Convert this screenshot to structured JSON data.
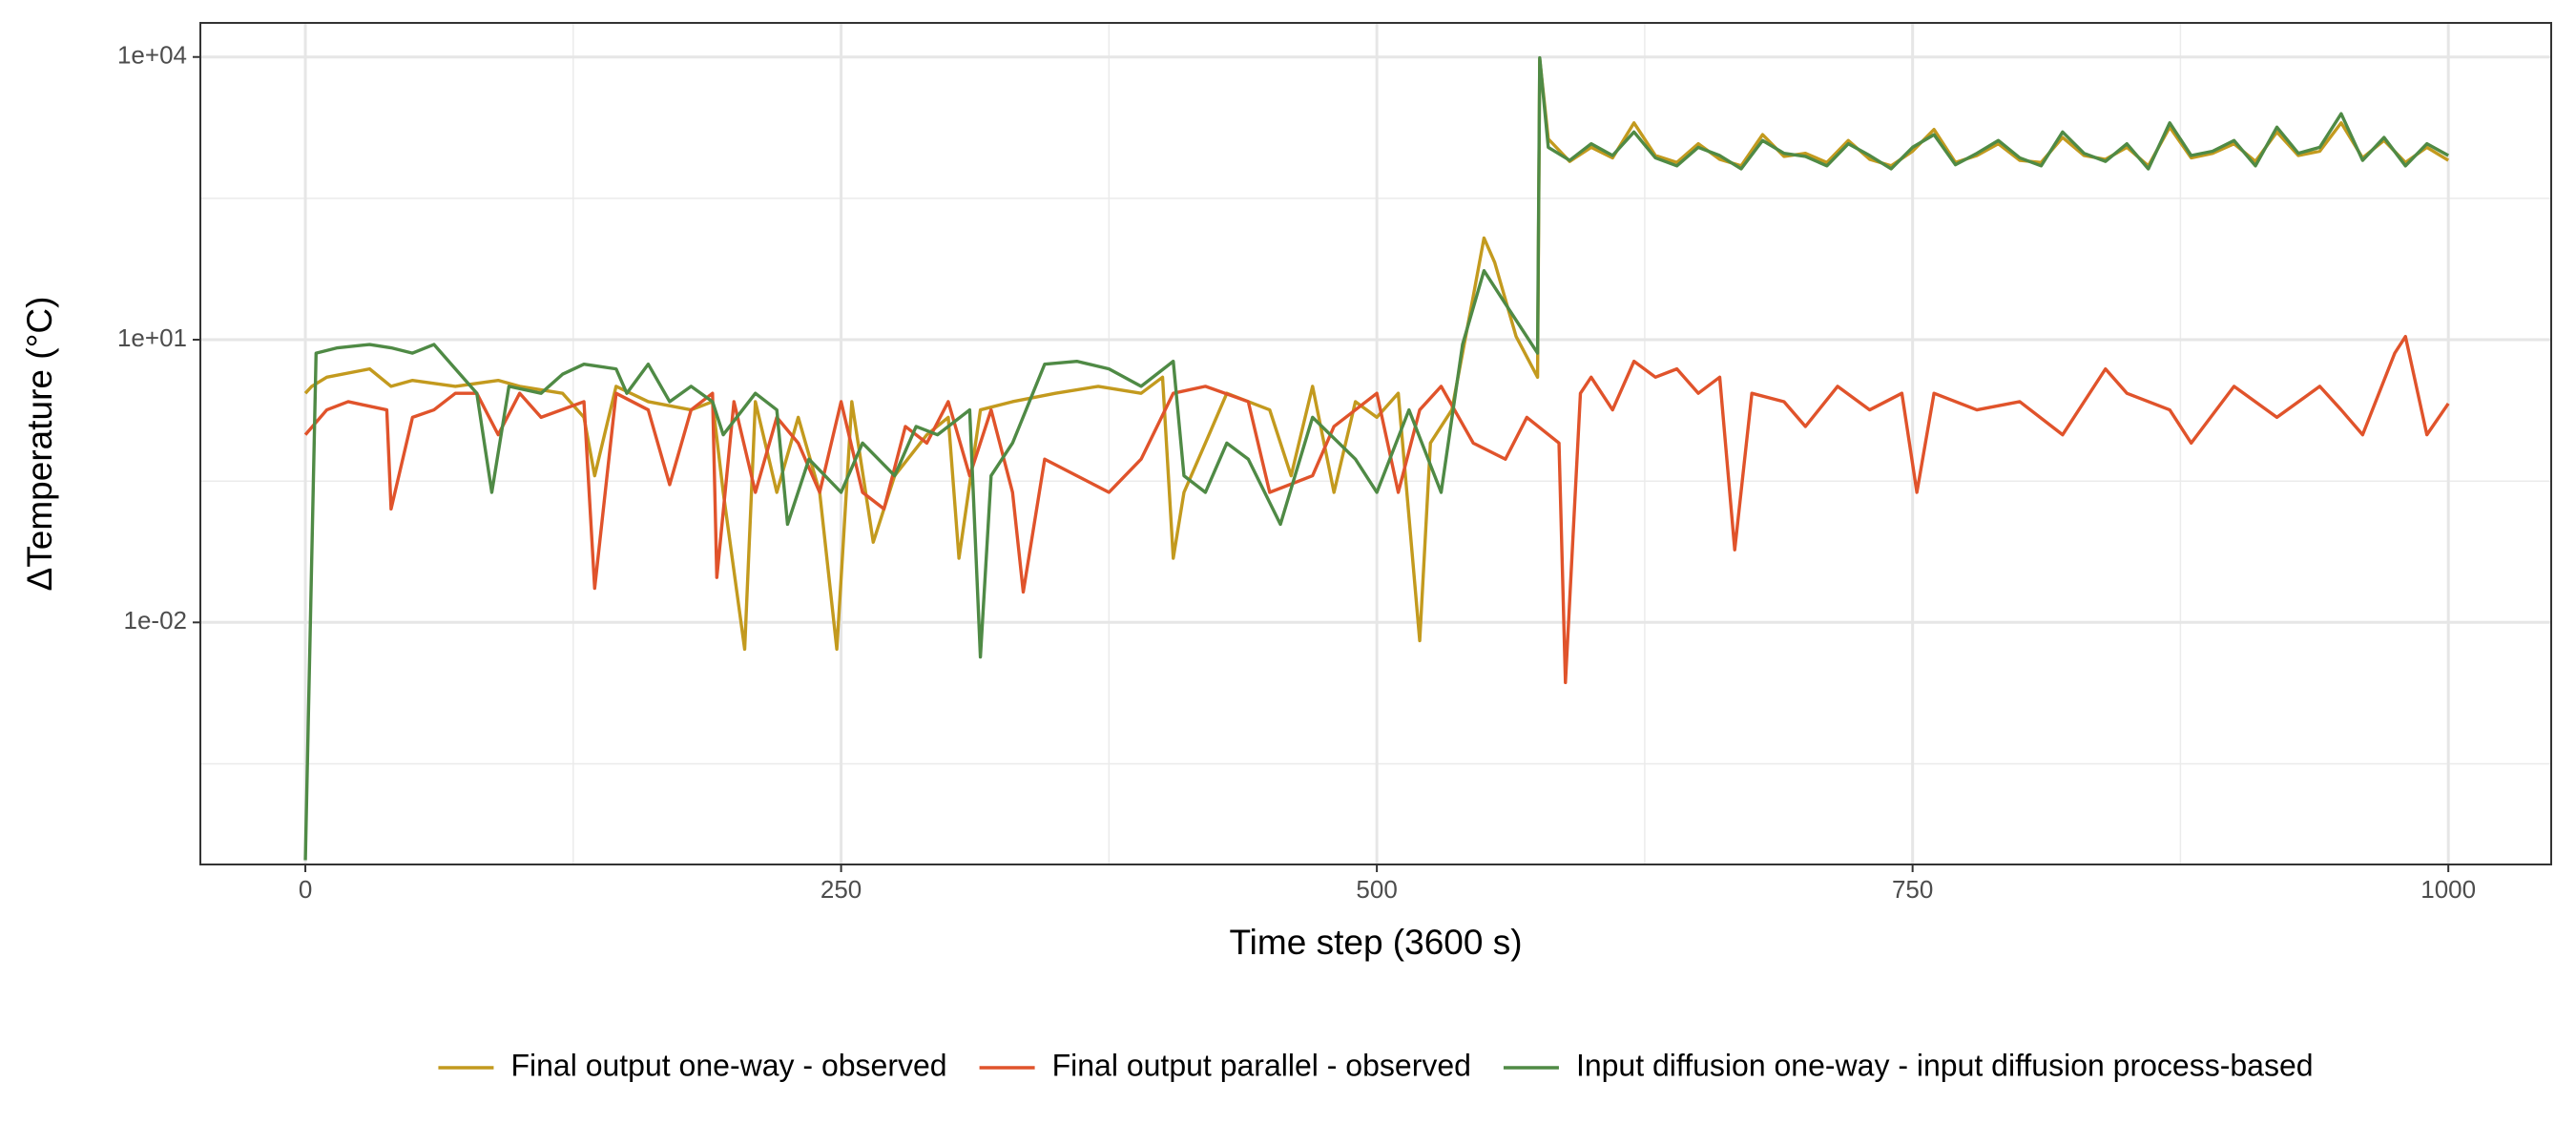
{
  "chart_data": {
    "type": "line",
    "xlabel": "Time step (3600 s)",
    "ylabel": "ΔTemperature (°C)",
    "xlim": [
      -49,
      1048
    ],
    "xticks": [
      0,
      250,
      500,
      750,
      1000
    ],
    "x_minor_gridlines": [
      125,
      375,
      625,
      875
    ],
    "ylim": [
      2.7e-05,
      23000
    ],
    "ylog": true,
    "yticks": [
      {
        "value": 0.01,
        "label": "1e-02"
      },
      {
        "value": 10,
        "label": "1e+01"
      },
      {
        "value": 10000,
        "label": "1e+04"
      }
    ],
    "y_minor_gridlines": [
      0.000316,
      0.316,
      316
    ],
    "grid": true,
    "legend": "bottom",
    "series": [
      {
        "name": "Final output one-way - observed",
        "color": "#c39a1e",
        "x": [
          0,
          3,
          10,
          30,
          40,
          50,
          70,
          90,
          100,
          120,
          130,
          135,
          145,
          160,
          180,
          190,
          195,
          205,
          210,
          220,
          230,
          240,
          248,
          255,
          265,
          275,
          290,
          300,
          305,
          315,
          330,
          350,
          370,
          390,
          400,
          405,
          410,
          420,
          430,
          450,
          460,
          470,
          480,
          490,
          500,
          510,
          520,
          525,
          535,
          545,
          550,
          555,
          565,
          575,
          576,
          580,
          590,
          600,
          610,
          620,
          630,
          640,
          650,
          660,
          670,
          680,
          690,
          700,
          710,
          720,
          730,
          740,
          750,
          760,
          770,
          780,
          790,
          800,
          810,
          820,
          830,
          840,
          850,
          860,
          870,
          880,
          890,
          900,
          910,
          920,
          930,
          940,
          950,
          960,
          970,
          980,
          990,
          1000
        ],
        "values": [
          2.7,
          3.2,
          4,
          4.9,
          3.2,
          3.7,
          3.2,
          3.7,
          3.2,
          2.7,
          1.5,
          0.36,
          3.2,
          2.2,
          1.8,
          2.2,
          0.24,
          0.0052,
          2.2,
          0.24,
          1.5,
          0.24,
          0.0052,
          2.2,
          0.071,
          0.36,
          0.98,
          1.5,
          0.048,
          1.8,
          2.2,
          2.7,
          3.2,
          2.7,
          4,
          0.048,
          0.24,
          0.8,
          2.7,
          1.8,
          0.36,
          3.2,
          0.24,
          2.2,
          1.5,
          2.7,
          0.0064,
          0.8,
          1.8,
          29,
          120,
          66,
          10.8,
          4,
          9500,
          1350,
          780,
          1100,
          850,
          2000,
          900,
          760,
          1200,
          820,
          700,
          1500,
          880,
          950,
          760,
          1300,
          820,
          700,
          1000,
          1700,
          760,
          900,
          1200,
          800,
          760,
          1400,
          900,
          820,
          1100,
          700,
          1800,
          850,
          950,
          1200,
          780,
          1600,
          900,
          1000,
          2000,
          850,
          1300,
          760,
          1100,
          800
        ]
      },
      {
        "name": "Final output parallel - observed",
        "color": "#e0532b",
        "x": [
          0,
          10,
          20,
          38,
          40,
          50,
          60,
          70,
          80,
          90,
          100,
          110,
          130,
          135,
          145,
          160,
          170,
          180,
          190,
          192,
          200,
          210,
          220,
          230,
          240,
          250,
          260,
          270,
          280,
          290,
          300,
          310,
          320,
          330,
          335,
          345,
          360,
          375,
          390,
          405,
          420,
          440,
          450,
          470,
          480,
          500,
          510,
          520,
          530,
          545,
          560,
          570,
          585,
          588,
          595,
          600,
          610,
          620,
          630,
          640,
          650,
          660,
          667,
          675,
          690,
          700,
          715,
          730,
          745,
          752,
          760,
          780,
          800,
          820,
          840,
          850,
          870,
          880,
          900,
          920,
          940,
          950,
          960,
          975,
          980,
          990,
          1000
        ],
        "values": [
          0.98,
          1.8,
          2.2,
          1.8,
          0.16,
          1.5,
          1.8,
          2.7,
          2.7,
          0.98,
          2.7,
          1.5,
          2.2,
          0.023,
          2.7,
          1.8,
          0.29,
          1.8,
          2.7,
          0.03,
          2.2,
          0.24,
          1.5,
          0.8,
          0.24,
          2.2,
          0.24,
          0.16,
          1.2,
          0.8,
          2.2,
          0.36,
          1.8,
          0.24,
          0.021,
          0.54,
          0.36,
          0.24,
          0.54,
          2.7,
          3.2,
          2.2,
          0.24,
          0.36,
          1.2,
          2.7,
          0.24,
          1.8,
          3.2,
          0.8,
          0.54,
          1.5,
          0.8,
          0.0023,
          2.7,
          4,
          1.8,
          5.9,
          4,
          4.9,
          2.7,
          4,
          0.059,
          2.7,
          2.2,
          1.2,
          3.2,
          1.8,
          2.7,
          0.24,
          2.7,
          1.8,
          2.2,
          0.98,
          4.9,
          2.7,
          1.8,
          0.8,
          3.2,
          1.5,
          3.2,
          1.8,
          0.98,
          7.2,
          10.8,
          0.98,
          2.1
        ]
      },
      {
        "name": "Input diffusion one-way - input diffusion process-based",
        "color": "#4f8a45",
        "x": [
          0,
          5,
          15,
          30,
          40,
          50,
          60,
          70,
          80,
          87,
          95,
          110,
          120,
          130,
          145,
          150,
          160,
          170,
          180,
          190,
          195,
          210,
          220,
          225,
          235,
          250,
          260,
          275,
          285,
          295,
          310,
          315,
          320,
          330,
          345,
          360,
          375,
          390,
          405,
          410,
          420,
          430,
          440,
          455,
          470,
          490,
          500,
          515,
          530,
          540,
          550,
          560,
          575,
          576,
          580,
          590,
          600,
          610,
          620,
          630,
          640,
          650,
          660,
          670,
          680,
          690,
          700,
          710,
          720,
          730,
          740,
          750,
          760,
          770,
          780,
          790,
          800,
          810,
          820,
          830,
          840,
          850,
          860,
          870,
          880,
          890,
          900,
          910,
          920,
          930,
          940,
          950,
          960,
          970,
          980,
          990,
          1000
        ],
        "values": [
          3e-05,
          7.2,
          8.2,
          8.9,
          8.2,
          7.2,
          8.9,
          4.9,
          2.7,
          0.24,
          3.2,
          2.7,
          4.3,
          5.5,
          4.9,
          2.7,
          5.5,
          2.2,
          3.2,
          2.2,
          0.98,
          2.7,
          1.8,
          0.11,
          0.54,
          0.24,
          0.8,
          0.36,
          1.2,
          0.98,
          1.8,
          0.0043,
          0.36,
          0.8,
          5.5,
          5.9,
          4.9,
          3.2,
          5.9,
          0.36,
          0.24,
          0.8,
          0.54,
          0.11,
          1.5,
          0.54,
          0.24,
          1.8,
          0.24,
          8.9,
          54,
          24,
          7.2,
          9800,
          1100,
          800,
          1200,
          900,
          1600,
          850,
          700,
          1100,
          900,
          650,
          1300,
          950,
          880,
          700,
          1200,
          900,
          650,
          1100,
          1500,
          720,
          950,
          1300,
          850,
          700,
          1600,
          950,
          780,
          1200,
          650,
          2000,
          900,
          1000,
          1300,
          700,
          1800,
          950,
          1100,
          2500,
          800,
          1400,
          700,
          1200,
          900
        ]
      }
    ]
  }
}
